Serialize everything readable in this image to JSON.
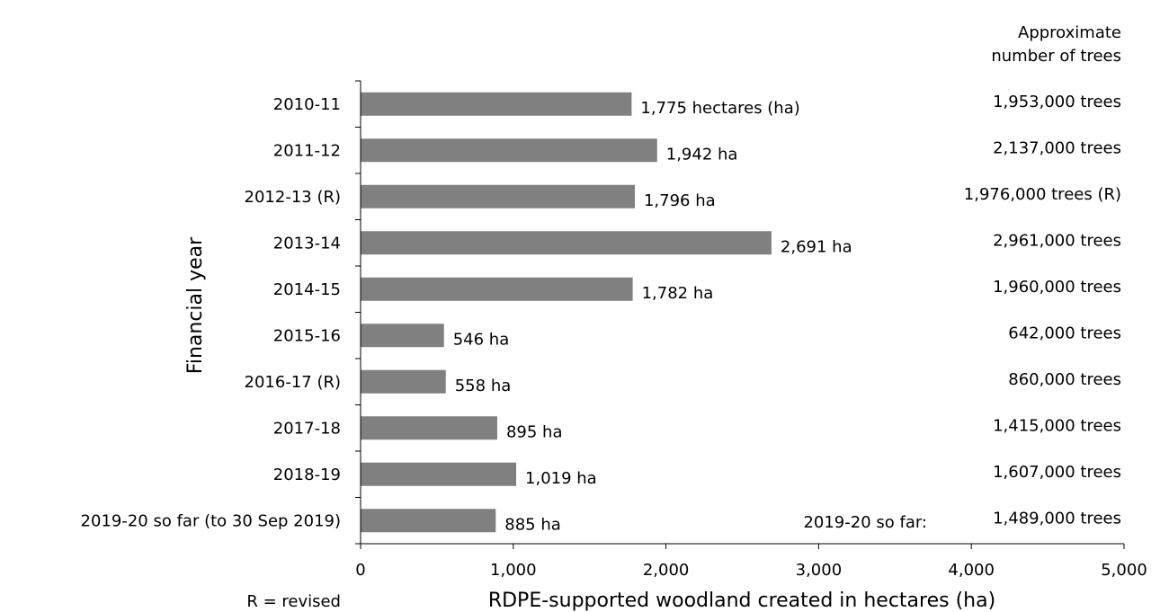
{
  "chart_data": {
    "type": "bar",
    "orientation": "horizontal",
    "categories": [
      "2010-11",
      "2011-12",
      "2012-13 (R)",
      "2013-14",
      "2014-15",
      "2015-16",
      "2016-17 (R)",
      "2017-18",
      "2018-19",
      "2019-20 so far (to 30 Sep 2019)"
    ],
    "values": [
      1775,
      1942,
      1796,
      2691,
      1782,
      546,
      558,
      895,
      1019,
      885
    ],
    "value_labels": [
      "1,775 hectares (ha)",
      "1,942 ha",
      "1,796 ha",
      "2,691 ha",
      "1,782 ha",
      "546 ha",
      "558 ha",
      "895 ha",
      "1,019 ha",
      "885 ha"
    ],
    "trees_header": "Approximate\nnumber of trees",
    "trees_labels": [
      "1,953,000 trees",
      "2,137,000 trees",
      "1,976,000 trees (R)",
      "2,961,000 trees",
      "1,960,000 trees",
      "642,000 trees",
      "860,000 trees",
      "1,415,000 trees",
      "1,607,000 trees",
      "1,489,000 trees"
    ],
    "trees_prefix_last": "2019-20 so far:",
    "xlabel": "RDPE-supported woodland created in hectares (ha)",
    "ylabel": "Financial year",
    "xlim": [
      0,
      5000
    ],
    "xticks": [
      0,
      1000,
      2000,
      3000,
      4000,
      5000
    ],
    "xtick_labels": [
      "0",
      "1,000",
      "2,000",
      "3,000",
      "4,000",
      "5,000"
    ],
    "footnote": "R = revised",
    "bar_color": "#808080",
    "grid": false
  }
}
